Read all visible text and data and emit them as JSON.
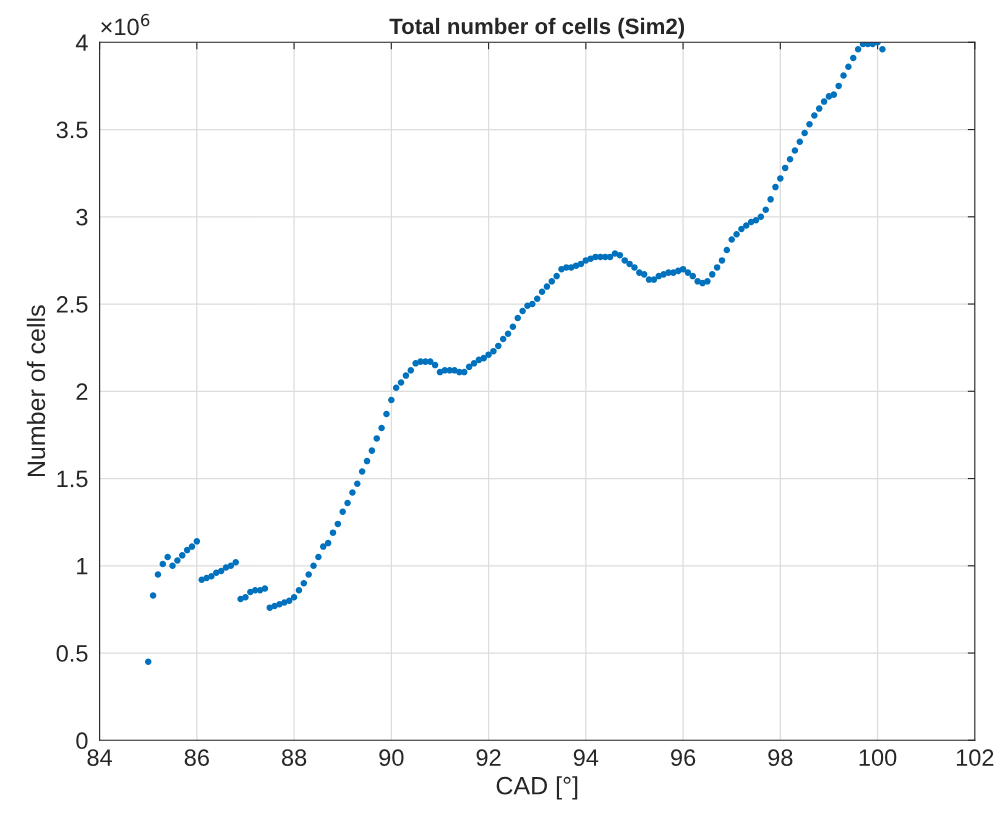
{
  "chart_data": {
    "type": "scatter",
    "title": "Total number of cells (Sim2)",
    "xlabel": "CAD [°]",
    "ylabel": "Number of cells",
    "annotations": [
      "×10$^{6}$"
    ],
    "x": [
      85.0,
      85.1,
      85.2,
      85.3,
      85.4,
      85.5,
      85.6,
      85.7,
      85.8,
      85.9,
      86.0,
      86.1,
      86.2,
      86.3,
      86.4,
      86.5,
      86.6,
      86.7,
      86.8,
      86.9,
      87.0,
      87.1,
      87.2,
      87.3,
      87.4,
      87.5,
      87.6,
      87.7,
      87.8,
      87.9,
      88.0,
      88.1,
      88.2,
      88.3,
      88.4,
      88.5,
      88.6,
      88.7,
      88.8,
      88.9,
      89.0,
      89.1,
      89.2,
      89.3,
      89.4,
      89.5,
      89.6,
      89.7,
      89.8,
      89.9,
      90.0,
      90.1,
      90.2,
      90.3,
      90.4,
      90.5,
      90.6,
      90.7,
      90.8,
      90.9,
      91.0,
      91.1,
      91.2,
      91.3,
      91.4,
      91.5,
      91.6,
      91.7,
      91.8,
      91.9,
      92.0,
      92.1,
      92.2,
      92.3,
      92.4,
      92.5,
      92.6,
      92.7,
      92.8,
      92.9,
      93.0,
      93.1,
      93.2,
      93.3,
      93.4,
      93.5,
      93.6,
      93.7,
      93.8,
      93.9,
      94.0,
      94.1,
      94.2,
      94.3,
      94.4,
      94.5,
      94.6,
      94.7,
      94.8,
      94.9,
      95.0,
      95.1,
      95.2,
      95.3,
      95.4,
      95.5,
      95.6,
      95.7,
      95.8,
      95.9,
      96.0,
      96.1,
      96.2,
      96.3,
      96.4,
      96.5,
      96.6,
      96.7,
      96.8,
      96.9,
      97.0,
      97.1,
      97.2,
      97.3,
      97.4,
      97.5,
      97.6,
      97.7,
      97.8,
      97.9,
      98.0,
      98.1,
      98.2,
      98.3,
      98.4,
      98.5,
      98.6,
      98.7,
      98.8,
      98.9,
      99.0,
      99.1,
      99.2,
      99.3,
      99.4,
      99.5,
      99.6,
      99.7,
      99.8,
      99.9,
      100.0,
      100.1
    ],
    "series": [
      {
        "color": "#0072bd",
        "values": [
          0.45,
          0.83,
          0.95,
          1.01,
          1.05,
          1.0,
          1.03,
          1.06,
          1.09,
          1.11,
          1.14,
          0.92,
          0.93,
          0.94,
          0.96,
          0.97,
          0.99,
          1.0,
          1.02,
          0.81,
          0.82,
          0.85,
          0.86,
          0.86,
          0.87,
          0.76,
          0.77,
          0.78,
          0.79,
          0.8,
          0.82,
          0.86,
          0.9,
          0.95,
          1.0,
          1.05,
          1.11,
          1.13,
          1.19,
          1.24,
          1.31,
          1.36,
          1.42,
          1.47,
          1.54,
          1.6,
          1.66,
          1.73,
          1.79,
          1.87,
          1.95,
          2.02,
          2.05,
          2.09,
          2.12,
          2.16,
          2.17,
          2.17,
          2.17,
          2.15,
          2.11,
          2.12,
          2.12,
          2.12,
          2.11,
          2.11,
          2.14,
          2.16,
          2.18,
          2.19,
          2.21,
          2.23,
          2.26,
          2.3,
          2.33,
          2.37,
          2.42,
          2.46,
          2.49,
          2.5,
          2.53,
          2.57,
          2.6,
          2.63,
          2.66,
          2.7,
          2.71,
          2.71,
          2.72,
          2.73,
          2.75,
          2.76,
          2.77,
          2.77,
          2.77,
          2.77,
          2.79,
          2.78,
          2.75,
          2.73,
          2.71,
          2.68,
          2.67,
          2.64,
          2.64,
          2.66,
          2.67,
          2.68,
          2.68,
          2.69,
          2.7,
          2.68,
          2.66,
          2.63,
          2.62,
          2.63,
          2.67,
          2.71,
          2.75,
          2.81,
          2.87,
          2.9,
          2.93,
          2.95,
          2.97,
          2.98,
          3.0,
          3.04,
          3.1,
          3.17,
          3.22,
          3.28,
          3.33,
          3.38,
          3.43,
          3.48,
          3.53,
          3.58,
          3.62,
          3.66,
          3.69,
          3.7,
          3.75,
          3.81,
          3.86,
          3.91,
          3.96,
          3.99,
          3.99,
          3.99,
          4.0,
          3.96
        ]
      }
    ],
    "xlim": [
      84,
      102
    ],
    "xticks": [
      84,
      86,
      88,
      90,
      92,
      94,
      96,
      98,
      100,
      102
    ],
    "ylim": [
      0,
      4
    ],
    "yticks": [
      0,
      0.5,
      1,
      1.5,
      2,
      2.5,
      3,
      3.5,
      4
    ],
    "grid": true,
    "marker": "circle"
  }
}
